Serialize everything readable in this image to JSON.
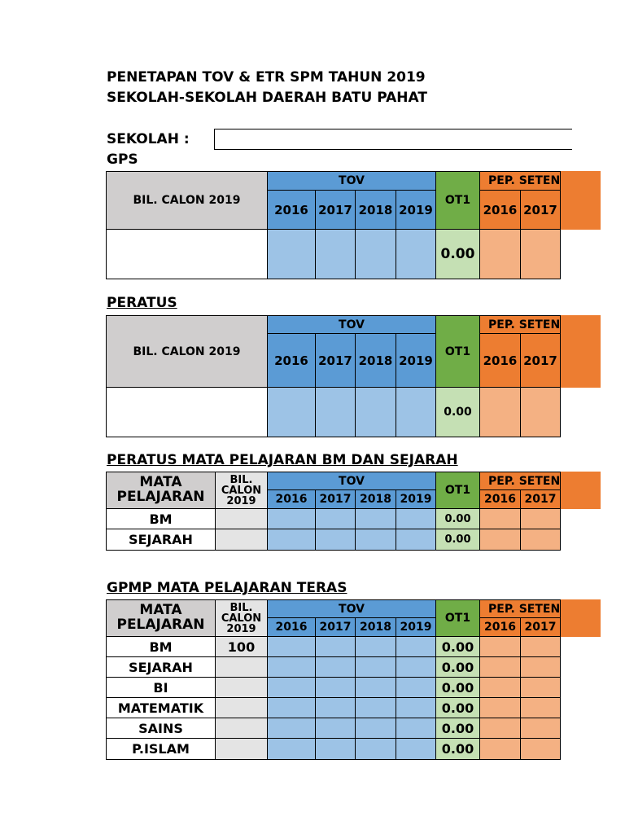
{
  "title_line1": "PENETAPAN TOV & ETR SPM TAHUN 2019",
  "title_line2": "SEKOLAH-SEKOLAH DAERAH BATU PAHAT",
  "school_label": "SEKOLAH :",
  "school_value": "",
  "headers": {
    "bil_calon": "BIL. CALON 2019",
    "tov": "TOV",
    "ot1": "OT1",
    "pep": "PEP. SETENG",
    "mata_pelajaran": "MATA PELAJARAN",
    "bil_calon_short": "BIL. CALON 2019",
    "years_tov": [
      "2016",
      "2017",
      "2018",
      "2019"
    ],
    "years_pep": [
      "2016",
      "2017"
    ]
  },
  "section_gps": {
    "title": "GPS",
    "ot1": "0.00"
  },
  "section_peratus": {
    "title": "PERATUS",
    "ot1": "0.00"
  },
  "section_bm_sejarah": {
    "title": "PERATUS MATA PELAJARAN BM DAN SEJARAH",
    "rows": [
      {
        "subject": "BM",
        "calon": "",
        "ot1": "0.00"
      },
      {
        "subject": "SEJARAH",
        "calon": "",
        "ot1": "0.00"
      }
    ]
  },
  "section_gpmp": {
    "title": "GPMP MATA PELAJARAN TERAS",
    "rows": [
      {
        "subject": "BM",
        "calon": "100",
        "ot1": "0.00"
      },
      {
        "subject": "SEJARAH",
        "calon": "",
        "ot1": "0.00"
      },
      {
        "subject": "BI",
        "calon": "",
        "ot1": "0.00"
      },
      {
        "subject": "MATEMATIK",
        "calon": "",
        "ot1": "0.00"
      },
      {
        "subject": "SAINS",
        "calon": "",
        "ot1": "0.00"
      },
      {
        "subject": "P.ISLAM",
        "calon": "",
        "ot1": "0.00"
      }
    ]
  }
}
